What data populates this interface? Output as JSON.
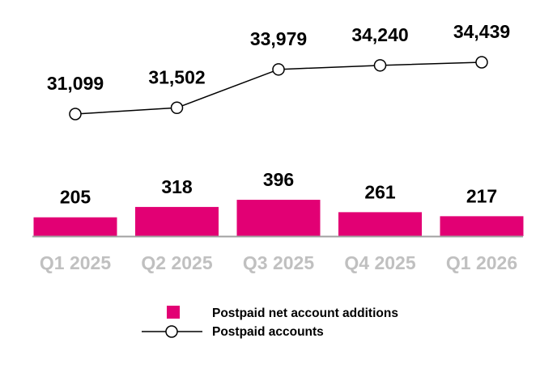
{
  "chart_data": {
    "type": "bar+line",
    "categories": [
      "Q1 2025",
      "Q2 2025",
      "Q3 2025",
      "Q4 2025",
      "Q1 2026"
    ],
    "series": [
      {
        "name": "Postpaid net account additions",
        "type": "bar",
        "values": [
          205,
          318,
          396,
          261,
          217
        ],
        "labels": [
          "205",
          "318",
          "396",
          "261",
          "217"
        ],
        "color": "#e20074"
      },
      {
        "name": "Postpaid accounts",
        "type": "line",
        "values": [
          31099,
          31502,
          33979,
          34240,
          34439
        ],
        "labels": [
          "31,099",
          "31,502",
          "33,979",
          "34,240",
          "34,439"
        ],
        "color": "#000000"
      }
    ],
    "title": "",
    "xlabel": "",
    "ylabel": "",
    "grid": false,
    "legend_position": "bottom-center",
    "axis_color": "#a0a0a0",
    "category_color": "#c0c0c0"
  }
}
